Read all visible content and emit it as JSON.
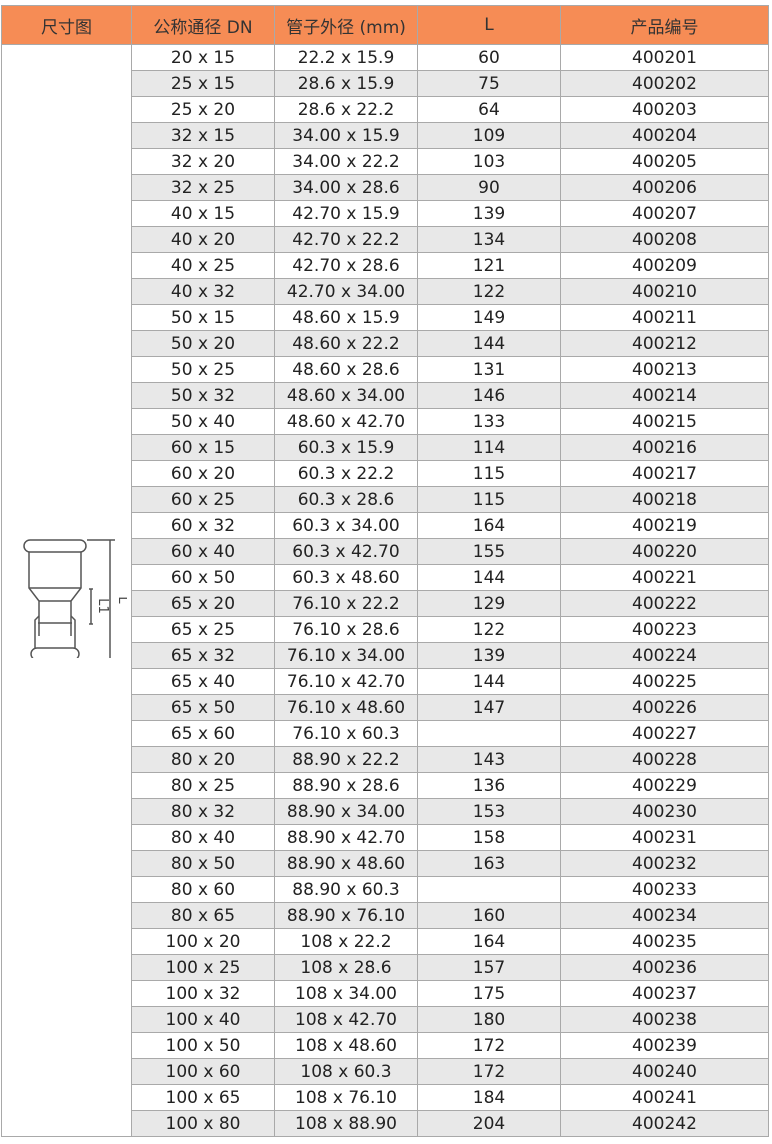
{
  "headers": [
    "尺寸图",
    "公称通径 DN",
    "管子外径 (mm)",
    "L",
    "产品编号"
  ],
  "diagram": {
    "label_L": "L",
    "label_L1": "L1"
  },
  "colors": {
    "header_bg": "#f68c55",
    "alt_row_bg": "#e8e8e8",
    "border": "#a9a9a9"
  },
  "rows": [
    [
      "20 x 15",
      "22.2 x 15.9",
      "60",
      "400201"
    ],
    [
      "25 x 15",
      "28.6 x 15.9",
      "75",
      "400202"
    ],
    [
      "25 x 20",
      "28.6 x 22.2",
      "64",
      "400203"
    ],
    [
      "32 x 15",
      "34.00 x 15.9",
      "109",
      "400204"
    ],
    [
      "32 x 20",
      "34.00 x 22.2",
      "103",
      "400205"
    ],
    [
      "32 x 25",
      "34.00 x 28.6",
      "90",
      "400206"
    ],
    [
      "40 x 15",
      "42.70 x 15.9",
      "139",
      "400207"
    ],
    [
      "40 x 20",
      "42.70 x 22.2",
      "134",
      "400208"
    ],
    [
      "40 x 25",
      "42.70 x 28.6",
      "121",
      "400209"
    ],
    [
      "40 x 32",
      "42.70 x 34.00",
      "122",
      "400210"
    ],
    [
      "50 x 15",
      "48.60 x 15.9",
      "149",
      "400211"
    ],
    [
      "50 x 20",
      "48.60 x 22.2",
      "144",
      "400212"
    ],
    [
      "50 x 25",
      "48.60 x 28.6",
      "131",
      "400213"
    ],
    [
      "50 x 32",
      "48.60 x 34.00",
      "146",
      "400214"
    ],
    [
      "50 x 40",
      "48.60 x 42.70",
      "133",
      "400215"
    ],
    [
      "60 x 15",
      "60.3 x 15.9",
      "114",
      "400216"
    ],
    [
      "60 x 20",
      "60.3 x 22.2",
      "115",
      "400217"
    ],
    [
      "60 x 25",
      "60.3 x 28.6",
      "115",
      "400218"
    ],
    [
      "60 x 32",
      "60.3 x 34.00",
      "164",
      "400219"
    ],
    [
      "60 x 40",
      "60.3 x 42.70",
      "155",
      "400220"
    ],
    [
      "60 x 50",
      "60.3 x 48.60",
      "144",
      "400221"
    ],
    [
      "65 x 20",
      "76.10 x 22.2",
      "129",
      "400222"
    ],
    [
      "65 x 25",
      "76.10 x 28.6",
      "122",
      "400223"
    ],
    [
      "65 x 32",
      "76.10 x 34.00",
      "139",
      "400224"
    ],
    [
      "65 x 40",
      "76.10 x 42.70",
      "144",
      "400225"
    ],
    [
      "65 x 50",
      "76.10 x 48.60",
      "147",
      "400226"
    ],
    [
      "65 x 60",
      "76.10 x 60.3",
      "",
      "400227"
    ],
    [
      "80 x 20",
      "88.90 x 22.2",
      "143",
      "400228"
    ],
    [
      "80 x 25",
      "88.90 x 28.6",
      "136",
      "400229"
    ],
    [
      "80 x 32",
      "88.90 x 34.00",
      "153",
      "400230"
    ],
    [
      "80 x 40",
      "88.90 x 42.70",
      "158",
      "400231"
    ],
    [
      "80 x 50",
      "88.90 x 48.60",
      "163",
      "400232"
    ],
    [
      "80 x 60",
      "88.90 x 60.3",
      "",
      "400233"
    ],
    [
      "80 x 65",
      "88.90 x 76.10",
      "160",
      "400234"
    ],
    [
      "100 x 20",
      "108 x 22.2",
      "164",
      "400235"
    ],
    [
      "100 x 25",
      "108 x 28.6",
      "157",
      "400236"
    ],
    [
      "100 x 32",
      "108 x 34.00",
      "175",
      "400237"
    ],
    [
      "100 x 40",
      "108 x 42.70",
      "180",
      "400238"
    ],
    [
      "100 x 50",
      "108 x 48.60",
      "172",
      "400239"
    ],
    [
      "100 x 60",
      "108 x 60.3",
      "172",
      "400240"
    ],
    [
      "100 x 65",
      "108 x 76.10",
      "184",
      "400241"
    ],
    [
      "100 x 80",
      "108 x 88.90",
      "204",
      "400242"
    ]
  ]
}
